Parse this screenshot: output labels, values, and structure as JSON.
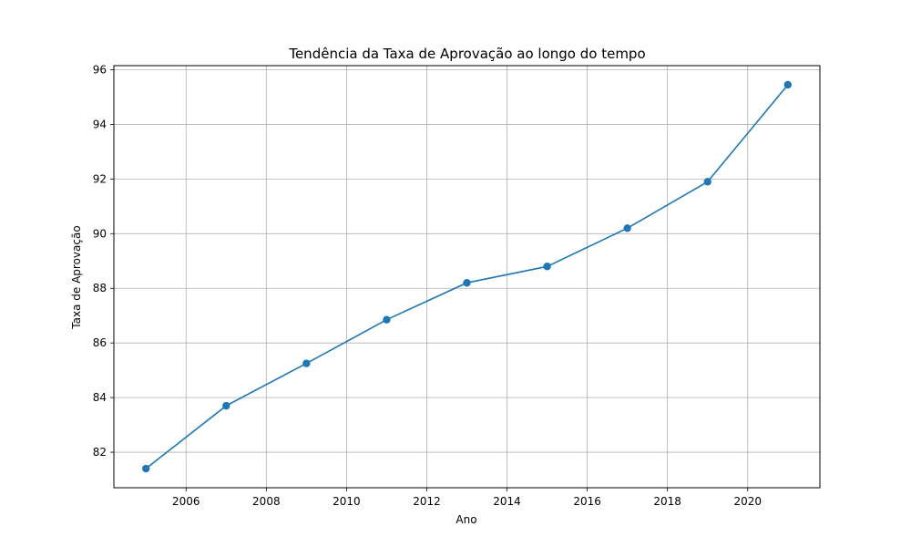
{
  "chart_data": {
    "type": "line",
    "title": "Tendência da Taxa de Aprovação ao longo do tempo",
    "xlabel": "Ano",
    "ylabel": "Taxa de Aprovação",
    "x": [
      2005,
      2007,
      2009,
      2011,
      2013,
      2015,
      2017,
      2019,
      2021
    ],
    "series": [
      {
        "values": [
          81.4,
          83.7,
          85.25,
          86.85,
          88.2,
          88.8,
          90.2,
          91.9,
          95.45
        ]
      }
    ],
    "x_ticks": [
      2006,
      2008,
      2010,
      2012,
      2014,
      2016,
      2018,
      2020
    ],
    "y_ticks": [
      82,
      84,
      86,
      88,
      90,
      92,
      94,
      96
    ],
    "xlim": [
      2004.2,
      2021.8
    ],
    "ylim": [
      80.7,
      96.15
    ],
    "grid": true,
    "line_color": "#1f77b4",
    "grid_color": "#b0b0b0"
  }
}
